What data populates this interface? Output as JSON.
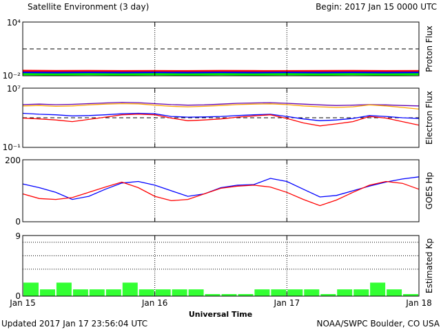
{
  "header": {
    "title": "Satellite Environment (3 day)",
    "begin": "Begin:  2017 Jan 15 0000 UTC"
  },
  "footer": {
    "updated": "Updated 2017 Jan 17 23:56:04 UTC",
    "credit": "NOAA/SWPC Boulder, CO USA",
    "xlabel": "Universal Time"
  },
  "colors": {
    "red": "#ff0000",
    "blue": "#0000ff",
    "green": "#00ee00",
    "orange": "#ffa500",
    "purple": "#6000b0",
    "bar": "#33ff33"
  },
  "chart_data": [
    {
      "type": "line",
      "name": "proton-flux",
      "ylabel": "Proton Flux",
      "yscale": "log",
      "ylim": [
        0.01,
        10000
      ],
      "ytick_labels": [
        "10⁴",
        "10⁻²"
      ],
      "threshold": 10,
      "x": [
        0,
        6,
        12,
        18,
        24,
        30,
        36,
        42,
        48,
        54,
        60,
        66,
        72
      ],
      "series": [
        {
          "color": "red",
          "values": [
            0.035,
            0.033,
            0.034,
            0.032,
            0.033,
            0.032,
            0.034,
            0.033,
            0.032,
            0.033,
            0.034,
            0.032,
            0.033
          ]
        },
        {
          "color": "blue",
          "values": [
            0.022,
            0.021,
            0.022,
            0.021,
            0.022,
            0.021,
            0.022,
            0.021,
            0.022,
            0.021,
            0.022,
            0.021,
            0.022
          ]
        },
        {
          "color": "green",
          "values": [
            0.015,
            0.014,
            0.015,
            0.014,
            0.015,
            0.014,
            0.015,
            0.014,
            0.015,
            0.014,
            0.015,
            0.014,
            0.015
          ]
        }
      ]
    },
    {
      "type": "line",
      "name": "electron-flux",
      "ylabel": "Electron Flux",
      "yscale": "log",
      "ylim": [
        0.1,
        10000000
      ],
      "ytick_labels": [
        "10⁷",
        "10⁻¹"
      ],
      "threshold": 1000,
      "x": [
        0,
        3,
        6,
        9,
        12,
        15,
        18,
        21,
        24,
        27,
        30,
        33,
        36,
        39,
        42,
        45,
        48,
        51,
        54,
        57,
        60,
        63,
        66,
        69,
        72
      ],
      "series": [
        {
          "color": "purple",
          "values": [
            60000,
            70000,
            58000,
            65000,
            80000,
            100000,
            120000,
            110000,
            80000,
            60000,
            50000,
            55000,
            70000,
            90000,
            100000,
            110000,
            90000,
            70000,
            55000,
            45000,
            50000,
            60000,
            55000,
            45000,
            40000
          ]
        },
        {
          "color": "orange",
          "values": [
            40000,
            45000,
            35000,
            40000,
            55000,
            70000,
            80000,
            75000,
            50000,
            35000,
            30000,
            35000,
            45000,
            60000,
            70000,
            75000,
            60000,
            40000,
            30000,
            25000,
            30000,
            55000,
            40000,
            25000,
            15000
          ]
        },
        {
          "color": "blue",
          "values": [
            4000,
            3000,
            2500,
            1800,
            2000,
            2500,
            3500,
            4000,
            3500,
            1500,
            1200,
            1300,
            1500,
            2000,
            2500,
            3000,
            1500,
            700,
            400,
            500,
            800,
            2000,
            1500,
            1000,
            800
          ]
        },
        {
          "color": "red",
          "values": [
            900,
            700,
            500,
            300,
            600,
            1200,
            2500,
            3000,
            2500,
            900,
            400,
            500,
            700,
            1200,
            1800,
            2500,
            800,
            200,
            80,
            150,
            300,
            1500,
            900,
            300,
            100
          ]
        }
      ]
    },
    {
      "type": "line",
      "name": "goes-hp",
      "ylabel": "GOES Hp",
      "ylim": [
        0,
        200
      ],
      "ytick_labels": [
        "200",
        "0"
      ],
      "x": [
        0,
        3,
        6,
        9,
        12,
        15,
        18,
        21,
        24,
        27,
        30,
        33,
        36,
        39,
        42,
        45,
        48,
        51,
        54,
        57,
        60,
        63,
        66,
        69,
        72
      ],
      "series": [
        {
          "color": "blue",
          "values": [
            122,
            110,
            95,
            72,
            82,
            105,
            125,
            130,
            118,
            100,
            82,
            90,
            110,
            118,
            120,
            140,
            130,
            105,
            80,
            85,
            100,
            115,
            128,
            138,
            145
          ]
        },
        {
          "color": "red",
          "values": [
            90,
            75,
            72,
            78,
            95,
            112,
            128,
            110,
            82,
            68,
            72,
            90,
            108,
            115,
            118,
            112,
            95,
            72,
            52,
            70,
            95,
            118,
            130,
            124,
            105
          ]
        }
      ]
    },
    {
      "type": "bar",
      "name": "estimated-kp",
      "ylabel": "Estimated Kp",
      "ylim": [
        0,
        9
      ],
      "ytick_labels": [
        "9",
        "0"
      ],
      "gridlines": [
        4,
        6,
        8
      ],
      "values": [
        2,
        1,
        2,
        1,
        1,
        1,
        2,
        1,
        1,
        1,
        1,
        0,
        0,
        0,
        1,
        1,
        1,
        1,
        0,
        1,
        1,
        2,
        1,
        0
      ]
    }
  ],
  "xaxis": {
    "range": [
      0,
      72
    ],
    "ticks": [
      0,
      24,
      48,
      72
    ],
    "tick_labels": [
      "Jan 15",
      "Jan 16",
      "Jan 17",
      "Jan 18"
    ],
    "day_lines": [
      24,
      48
    ]
  }
}
